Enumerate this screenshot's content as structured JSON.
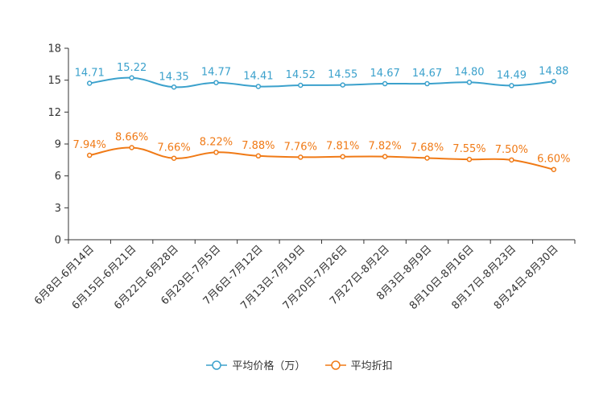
{
  "chart_data": {
    "type": "line",
    "title": "",
    "categories": [
      "6月8日-6月14日",
      "6月15日-6月21日",
      "6月22日-6月28日",
      "6月29日-7月5日",
      "7月6日-7月12日",
      "7月13日-7月19日",
      "7月20日-7月26日",
      "7月27日-8月2日",
      "8月3日-8月9日",
      "8月10日-8月16日",
      "8月17日-8月23日",
      "8月24日-8月30日"
    ],
    "ylim": [
      0,
      18
    ],
    "yticks": [
      0,
      3,
      6,
      9,
      12,
      15,
      18
    ],
    "series": [
      {
        "name": "平均价格（万）",
        "color": "#3ba1cc",
        "values": [
          14.71,
          15.22,
          14.35,
          14.77,
          14.41,
          14.52,
          14.55,
          14.67,
          14.67,
          14.8,
          14.49,
          14.88
        ],
        "labels": [
          "14.71",
          "15.22",
          "14.35",
          "14.77",
          "14.41",
          "14.52",
          "14.55",
          "14.67",
          "14.67",
          "14.80",
          "14.49",
          "14.88"
        ]
      },
      {
        "name": "平均折扣",
        "color": "#f07a16",
        "values": [
          7.94,
          8.66,
          7.66,
          8.22,
          7.88,
          7.76,
          7.81,
          7.82,
          7.68,
          7.55,
          7.5,
          6.6
        ],
        "labels": [
          "7.94%",
          "8.66%",
          "7.66%",
          "8.22%",
          "7.88%",
          "7.76%",
          "7.81%",
          "7.82%",
          "7.68%",
          "7.55%",
          "7.50%",
          "6.60%"
        ]
      }
    ],
    "legend_position": "bottom"
  }
}
